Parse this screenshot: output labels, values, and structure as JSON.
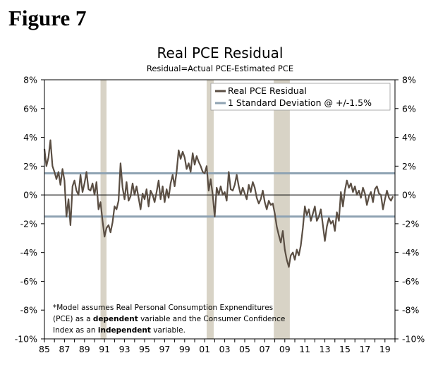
{
  "figure_label": "Figure 7",
  "colors": {
    "series": "#5a4e43",
    "band": "#8fa3b3",
    "recession": "#d8d3c6",
    "axis": "#000000"
  },
  "footnote": {
    "part1": "*Model assumes Real Personal Consumption Expnenditures (PCE) as a ",
    "bold1": "dependent",
    "part2": " variable and the Consumer Confidence Index as an ",
    "bold2": "independent",
    "part3": " variable."
  },
  "chart_data": {
    "type": "line",
    "title": "Real PCE Residual",
    "subtitle": "Residual=Actual PCE-Estimated PCE",
    "x_range": [
      1985,
      2020
    ],
    "x_tick_labels": [
      "85",
      "87",
      "89",
      "91",
      "93",
      "95",
      "97",
      "99",
      "01",
      "03",
      "05",
      "07",
      "09",
      "11",
      "13",
      "15",
      "17",
      "19"
    ],
    "x_tick_values": [
      1985,
      1987,
      1989,
      1991,
      1993,
      1995,
      1997,
      1999,
      2001,
      2003,
      2005,
      2007,
      2009,
      2011,
      2013,
      2015,
      2017,
      2019
    ],
    "ylim": [
      -10,
      8
    ],
    "y_ticks": [
      8,
      6,
      4,
      2,
      0,
      -2,
      -4,
      -6,
      -8,
      -10
    ],
    "y_tick_labels": [
      "8%",
      "6%",
      "4%",
      "2%",
      "0%",
      "-2%",
      "-4%",
      "-6%",
      "-8%",
      "-10%"
    ],
    "legend": {
      "position": "top-right",
      "entries": [
        "Real PCE Residual",
        "1 Standard Deviation @ +/-1.5%"
      ]
    },
    "recessions": [
      [
        1990.6,
        1991.2
      ],
      [
        2001.2,
        2001.9
      ],
      [
        2007.9,
        2009.5
      ]
    ],
    "std_band": [
      1.5,
      -1.5
    ],
    "series": [
      {
        "name": "Real PCE Residual",
        "x": [
          1985.0,
          1985.2,
          1985.4,
          1985.6,
          1985.8,
          1986.0,
          1986.2,
          1986.4,
          1986.6,
          1986.8,
          1987.0,
          1987.2,
          1987.4,
          1987.6,
          1987.8,
          1988.0,
          1988.2,
          1988.4,
          1988.6,
          1988.8,
          1989.0,
          1989.2,
          1989.4,
          1989.6,
          1989.8,
          1990.0,
          1990.2,
          1990.4,
          1990.6,
          1990.8,
          1991.0,
          1991.2,
          1991.4,
          1991.6,
          1991.8,
          1992.0,
          1992.2,
          1992.4,
          1992.6,
          1992.8,
          1993.0,
          1993.2,
          1993.4,
          1993.6,
          1993.8,
          1994.0,
          1994.2,
          1994.4,
          1994.6,
          1994.8,
          1995.0,
          1995.2,
          1995.4,
          1995.6,
          1995.8,
          1996.0,
          1996.2,
          1996.4,
          1996.6,
          1996.8,
          1997.0,
          1997.2,
          1997.4,
          1997.6,
          1997.8,
          1998.0,
          1998.2,
          1998.4,
          1998.6,
          1998.8,
          1999.0,
          1999.2,
          1999.4,
          1999.6,
          1999.8,
          2000.0,
          2000.2,
          2000.4,
          2000.6,
          2000.8,
          2001.0,
          2001.2,
          2001.4,
          2001.6,
          2001.8,
          2002.0,
          2002.2,
          2002.4,
          2002.6,
          2002.8,
          2003.0,
          2003.2,
          2003.4,
          2003.6,
          2003.8,
          2004.0,
          2004.2,
          2004.4,
          2004.6,
          2004.8,
          2005.0,
          2005.2,
          2005.4,
          2005.6,
          2005.8,
          2006.0,
          2006.2,
          2006.4,
          2006.6,
          2006.8,
          2007.0,
          2007.2,
          2007.4,
          2007.6,
          2007.8,
          2008.0,
          2008.2,
          2008.4,
          2008.6,
          2008.8,
          2009.0,
          2009.2,
          2009.4,
          2009.6,
          2009.8,
          2010.0,
          2010.2,
          2010.4,
          2010.6,
          2010.8,
          2011.0,
          2011.2,
          2011.4,
          2011.6,
          2011.8,
          2012.0,
          2012.2,
          2012.4,
          2012.6,
          2012.8,
          2013.0,
          2013.2,
          2013.4,
          2013.6,
          2013.8,
          2014.0,
          2014.2,
          2014.4,
          2014.6,
          2014.8,
          2015.0,
          2015.2,
          2015.4,
          2015.6,
          2015.8,
          2016.0,
          2016.2,
          2016.4,
          2016.6,
          2016.8,
          2017.0,
          2017.2,
          2017.4,
          2017.6,
          2017.8,
          2018.0,
          2018.2,
          2018.4,
          2018.6,
          2018.8,
          2019.0,
          2019.2,
          2019.4,
          2019.6,
          2019.8
        ],
        "y": [
          3.2,
          2.0,
          2.6,
          3.8,
          2.0,
          1.6,
          1.1,
          1.6,
          0.7,
          1.8,
          1.0,
          -1.5,
          -0.3,
          -2.1,
          0.6,
          1.0,
          0.3,
          0.0,
          1.4,
          0.2,
          0.8,
          1.6,
          0.4,
          0.3,
          0.8,
          0.0,
          0.9,
          -1.0,
          -0.5,
          -1.8,
          -2.9,
          -2.3,
          -2.1,
          -2.6,
          -1.9,
          -0.8,
          -1.0,
          -0.4,
          2.2,
          0.5,
          -0.3,
          0.9,
          -0.4,
          -0.1,
          0.8,
          0.0,
          0.6,
          -0.2,
          -1.0,
          0.1,
          -0.3,
          0.4,
          -0.8,
          0.3,
          0.0,
          -0.5,
          0.2,
          1.0,
          -0.3,
          0.6,
          -0.5,
          0.4,
          -0.2,
          0.8,
          1.4,
          0.6,
          1.6,
          3.1,
          2.5,
          3.0,
          2.6,
          1.8,
          2.2,
          1.6,
          2.9,
          2.1,
          2.7,
          2.3,
          2.0,
          1.6,
          1.5,
          2.0,
          0.3,
          1.1,
          0.0,
          -1.5,
          0.5,
          0.0,
          0.6,
          0.0,
          0.2,
          -0.4,
          1.6,
          0.4,
          0.3,
          0.7,
          1.4,
          0.6,
          0.0,
          0.5,
          0.1,
          -0.3,
          0.7,
          0.2,
          0.9,
          0.5,
          -0.2,
          -0.6,
          -0.3,
          0.3,
          -0.5,
          -1.0,
          -0.4,
          -0.7,
          -0.6,
          -1.3,
          -2.2,
          -2.8,
          -3.3,
          -2.5,
          -3.8,
          -4.5,
          -5.0,
          -4.2,
          -4.0,
          -4.5,
          -3.8,
          -4.2,
          -3.5,
          -2.3,
          -0.8,
          -1.4,
          -1.0,
          -1.8,
          -1.3,
          -0.8,
          -1.8,
          -1.5,
          -1.0,
          -2.1,
          -3.2,
          -2.2,
          -1.6,
          -2.0,
          -1.8,
          -2.5,
          -1.2,
          -1.8,
          0.2,
          -0.8,
          0.3,
          1.0,
          0.5,
          0.8,
          0.2,
          0.6,
          0.0,
          0.3,
          -0.2,
          0.5,
          0.1,
          -0.7,
          -0.1,
          0.2,
          -0.5,
          0.4,
          0.6,
          0.1,
          0.0,
          -1.0,
          -0.3,
          0.3,
          -0.2,
          -0.4,
          -0.1
        ]
      },
      {
        "name": "1 Standard Deviation @ +/-1.5%",
        "x": [
          1985,
          2020
        ],
        "y_upper": 1.5,
        "y_lower": -1.5
      }
    ]
  }
}
